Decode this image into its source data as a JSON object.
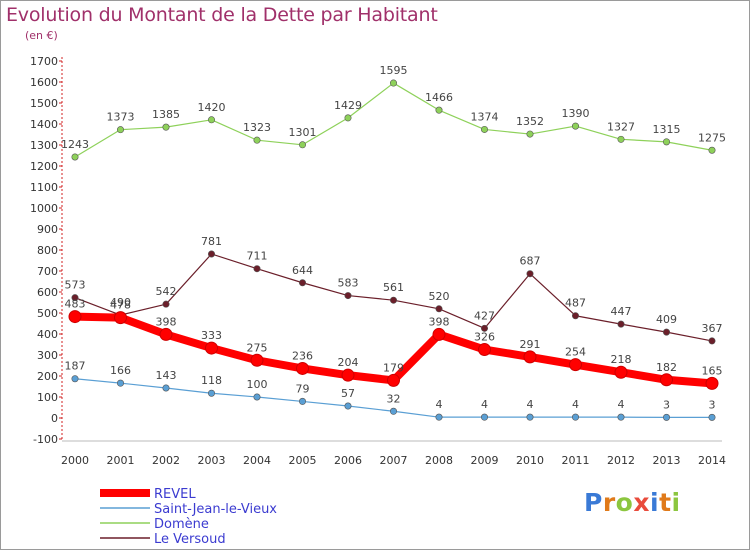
{
  "title": "Evolution du Montant de la Dette par Habitant",
  "subtitle": "(en €)",
  "brand": "Proxiti",
  "chart_data": {
    "type": "line",
    "categories": [
      "2000",
      "2001",
      "2002",
      "2003",
      "2004",
      "2005",
      "2006",
      "2007",
      "2008",
      "2009",
      "2010",
      "2011",
      "2012",
      "2013",
      "2014"
    ],
    "ylim": [
      -100,
      1700
    ],
    "yticks": [
      -100,
      0,
      100,
      200,
      300,
      400,
      500,
      600,
      700,
      800,
      900,
      1000,
      1100,
      1200,
      1300,
      1400,
      1500,
      1600,
      1700
    ],
    "grid": false,
    "legend_position": "bottom-left",
    "series": [
      {
        "name": "Domène",
        "color": "#8ed15a",
        "values": [
          1243,
          1373,
          1385,
          1420,
          1323,
          1301,
          1429,
          1595,
          1466,
          1374,
          1352,
          1390,
          1327,
          1315,
          1275
        ]
      },
      {
        "name": "Le Versoud",
        "color": "#6b1f2a",
        "values": [
          573,
          490,
          542,
          781,
          711,
          644,
          583,
          561,
          520,
          427,
          687,
          487,
          447,
          409,
          367
        ]
      },
      {
        "name": "REVEL",
        "color": "#ff0000",
        "values": [
          483,
          478,
          398,
          333,
          275,
          236,
          204,
          179,
          398,
          326,
          291,
          254,
          218,
          182,
          165
        ]
      },
      {
        "name": "Saint-Jean-le-Vieux",
        "color": "#5a9fd4",
        "values": [
          187,
          166,
          143,
          118,
          100,
          79,
          57,
          32,
          4,
          4,
          4,
          4,
          4,
          3,
          3
        ]
      }
    ],
    "legend_order": [
      "REVEL",
      "Saint-Jean-le-Vieux",
      "Domène",
      "Le Versoud"
    ]
  }
}
